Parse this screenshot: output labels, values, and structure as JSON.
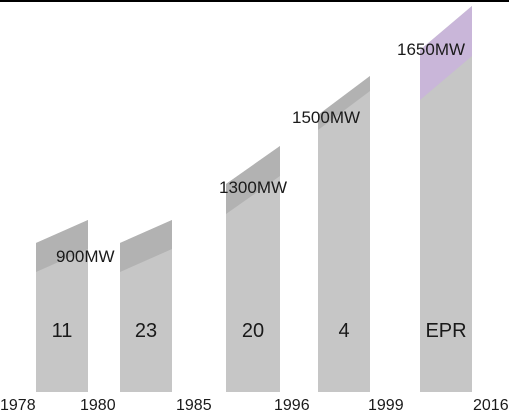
{
  "colors": {
    "bar_body": "#c6c6c6",
    "bar_top_dark": "#b2b2b2",
    "bar_top_purple": "#c9b6d9",
    "top_rule": "#000000",
    "text": "#1a1a1a"
  },
  "chart_data": {
    "type": "bar",
    "title": "",
    "xlabel": "",
    "ylabel": "",
    "x_ticks": [
      "1978",
      "1980",
      "1985",
      "1996",
      "1999",
      "2016"
    ],
    "bars": [
      {
        "count_label": "11",
        "power_label": "900MW",
        "power_mw": 900
      },
      {
        "count_label": "23",
        "power_label": "",
        "power_mw": 900
      },
      {
        "count_label": "20",
        "power_label": "1300MW",
        "power_mw": 1300
      },
      {
        "count_label": "4",
        "power_label": "1500MW",
        "power_mw": 1500
      },
      {
        "count_label": "EPR",
        "power_label": "1650MW",
        "power_mw": 1650
      }
    ]
  }
}
